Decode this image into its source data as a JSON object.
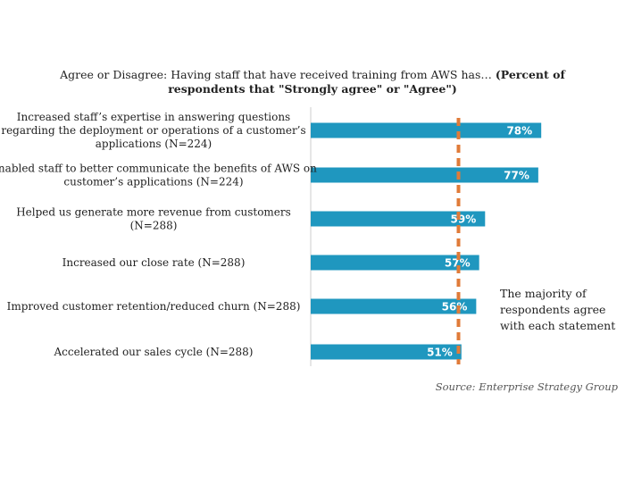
{
  "chart_data": {
    "type": "bar",
    "orientation": "horizontal",
    "title_lines": [
      {
        "normal": "Agree or Disagree: Having staff that have received training from AWS has…",
        "bold": "(Percent of"
      },
      {
        "normal": "",
        "bold": "respondents that \"Strongly agree\" or \"Agree\")"
      }
    ],
    "categories": [
      [
        "Increased staff’s expertise in answering questions",
        "regarding the deployment or operations of a customer’s",
        "applications (N=224)"
      ],
      [
        "Enabled staff to better communicate the benefits of AWS on",
        "customer’s applications (N=224)"
      ],
      [
        "Helped us generate more revenue from customers",
        "(N=288)"
      ],
      [
        "Increased our close rate (N=288)"
      ],
      [
        "Improved customer retention/reduced churn (N=288)"
      ],
      [
        "Accelerated our sales cycle (N=288)"
      ]
    ],
    "values": [
      78,
      77,
      59,
      57,
      56,
      51
    ],
    "value_labels": [
      "78%",
      "77%",
      "59%",
      "57%",
      "56%",
      "51%"
    ],
    "xlim": [
      0,
      100
    ],
    "reference_line": {
      "value": 50
    },
    "annotation_lines": [
      "The majority of",
      "respondents agree",
      "with each statement"
    ],
    "source": "Source: Enterprise Strategy Group",
    "colors": {
      "bar": "#1f97bf",
      "reference_line": "#e07b39",
      "axis": "#cccccc"
    },
    "grid": false,
    "legend": "none"
  }
}
